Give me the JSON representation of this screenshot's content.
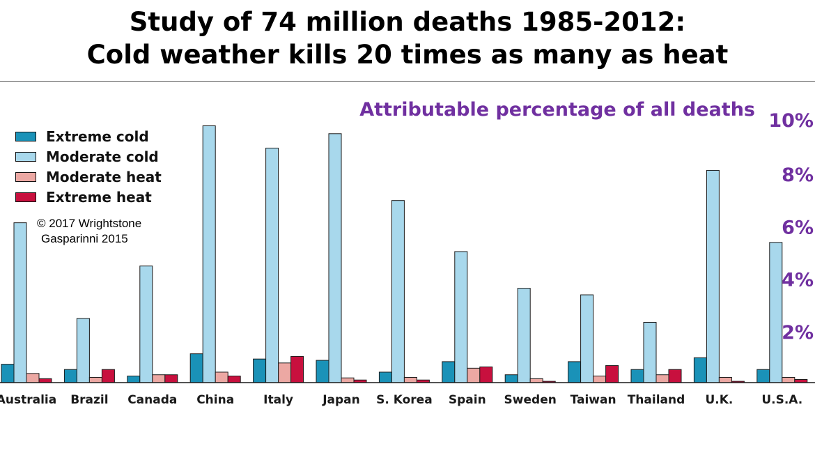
{
  "header": {
    "title_line1": "Study of 74 million deaths 1985-2012:",
    "title_line2": "Cold weather kills 20 times as many as heat"
  },
  "credits": {
    "line1": "© 2017 Wrightstone",
    "line2": "Gasparinni 2015"
  },
  "colors": {
    "extreme_cold": "#1a92b8",
    "moderate_cold": "#a8d8ec",
    "moderate_heat": "#eca8a3",
    "extreme_heat": "#c8103e",
    "axis_text": "#7030a0"
  },
  "chart_data": {
    "type": "bar",
    "title": "Attributable percentage of all deaths",
    "ylim": [
      0,
      10
    ],
    "yticks": [
      "2%",
      "4%",
      "6%",
      "8%",
      "10%"
    ],
    "ytick_values": [
      2,
      4,
      6,
      8,
      10
    ],
    "legend_position": "top-left",
    "categories": [
      "Australia",
      "Brazil",
      "Canada",
      "China",
      "Italy",
      "Japan",
      "S. Korea",
      "Spain",
      "Sweden",
      "Taiwan",
      "Thailand",
      "U.K.",
      "U.S.A."
    ],
    "series": [
      {
        "name": "Extreme cold",
        "color": "#1a92b8",
        "values": [
          0.7,
          0.5,
          0.25,
          1.1,
          0.9,
          0.85,
          0.4,
          0.8,
          0.3,
          0.8,
          0.5,
          0.95,
          0.5
        ]
      },
      {
        "name": "Moderate cold",
        "color": "#a8d8ec",
        "values": [
          6.1,
          2.45,
          4.45,
          9.8,
          8.95,
          9.5,
          6.95,
          5.0,
          3.6,
          3.35,
          2.3,
          8.1,
          5.35
        ]
      },
      {
        "name": "Moderate heat",
        "color": "#eca8a3",
        "values": [
          0.35,
          0.2,
          0.3,
          0.4,
          0.75,
          0.18,
          0.2,
          0.55,
          0.15,
          0.25,
          0.3,
          0.2,
          0.2
        ]
      },
      {
        "name": "Extreme heat",
        "color": "#c8103e",
        "values": [
          0.15,
          0.5,
          0.3,
          0.25,
          1.0,
          0.1,
          0.1,
          0.6,
          0.05,
          0.65,
          0.5,
          0.05,
          0.12
        ]
      }
    ]
  }
}
